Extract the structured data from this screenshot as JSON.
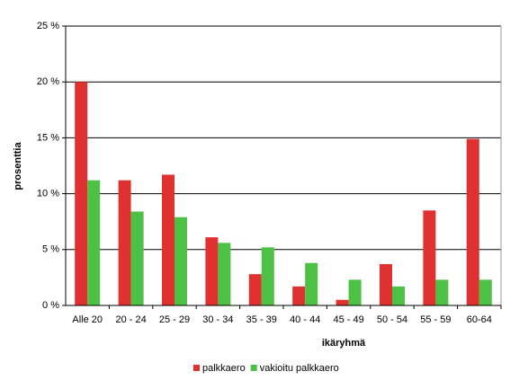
{
  "chart_data": {
    "type": "bar",
    "x_label": "ikäryhmä",
    "y_label": "prosenttia",
    "categories": [
      "Alle 20",
      "20 - 24",
      "25 - 29",
      "30 - 34",
      "35 - 39",
      "40 - 44",
      "45 - 49",
      "50 - 54",
      "55 - 59",
      "60-64"
    ],
    "series": [
      {
        "name": "palkkaero",
        "color": "#e03131",
        "values": [
          20.0,
          11.2,
          11.7,
          6.1,
          2.8,
          1.7,
          0.5,
          3.7,
          8.5,
          14.9
        ]
      },
      {
        "name": "vakioitu palkkaero",
        "color": "#4cc143",
        "values": [
          11.2,
          8.4,
          7.9,
          5.6,
          5.2,
          3.8,
          2.3,
          1.7,
          2.3,
          2.3
        ]
      }
    ],
    "ylim": [
      0,
      25
    ],
    "yticks": [
      {
        "value": 0,
        "label": "0 %"
      },
      {
        "value": 5,
        "label": "5 %"
      },
      {
        "value": 10,
        "label": "10 %"
      },
      {
        "value": 15,
        "label": "15 %"
      },
      {
        "value": 20,
        "label": "20 %"
      },
      {
        "value": 25,
        "label": "25 %"
      }
    ],
    "grid": true
  }
}
